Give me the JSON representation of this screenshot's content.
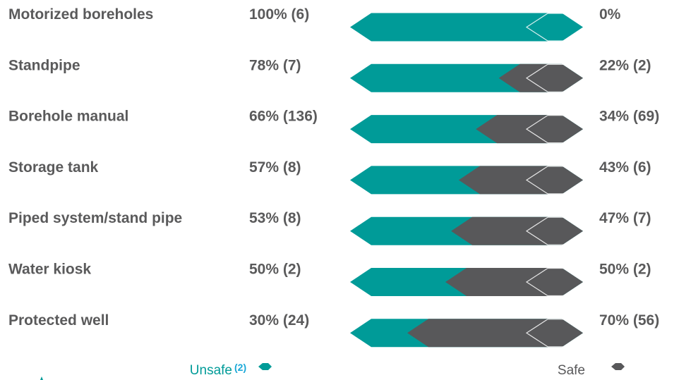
{
  "chart_data": {
    "type": "bar",
    "stacked": true,
    "orientation": "horizontal",
    "categories": [
      "Motorized boreholes",
      "Standpipe",
      "Borehole manual",
      "Storage tank",
      "Piped system/stand pipe",
      "Water kiosk",
      "Protected well"
    ],
    "series": [
      {
        "name": "Unsafe",
        "values": [
          100,
          78,
          66,
          57,
          53,
          50,
          30
        ],
        "labels": [
          "100% (6)",
          "78% (7)",
          "66% (136)",
          "57% (8)",
          "53% (8)",
          "50% (2)",
          "30% (24)"
        ],
        "color": "#009b98"
      },
      {
        "name": "Safe",
        "values": [
          0,
          22,
          34,
          43,
          47,
          50,
          70
        ],
        "labels": [
          "0%",
          "22% (2)",
          "34% (69)",
          "43% (6)",
          "47% (7)",
          "50% (2)",
          "70% (56)"
        ],
        "color": "#58585a"
      }
    ],
    "xlim": [
      0,
      100
    ],
    "legend": {
      "placement": "bottom",
      "unsafe_label": "Unsafe",
      "unsafe_note": "(2)",
      "safe_label": "Safe",
      "note_color": "#19a8d8"
    },
    "grid": false
  }
}
